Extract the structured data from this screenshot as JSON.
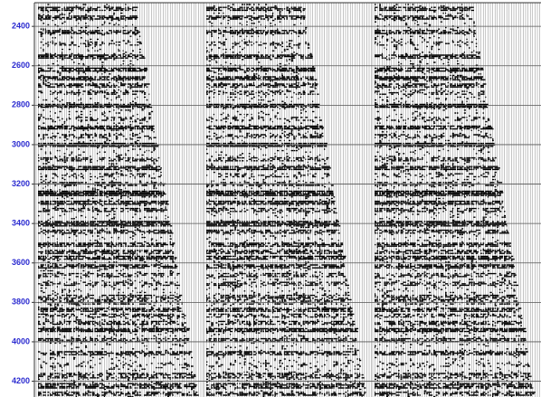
{
  "chart_data": {
    "type": "seismic",
    "ylim": [
      2280,
      4280
    ],
    "y_inverted": true,
    "yticks": [
      2400,
      2600,
      2800,
      3000,
      3200,
      3400,
      3600,
      3800,
      4000,
      4200
    ],
    "grid": true
  }
}
